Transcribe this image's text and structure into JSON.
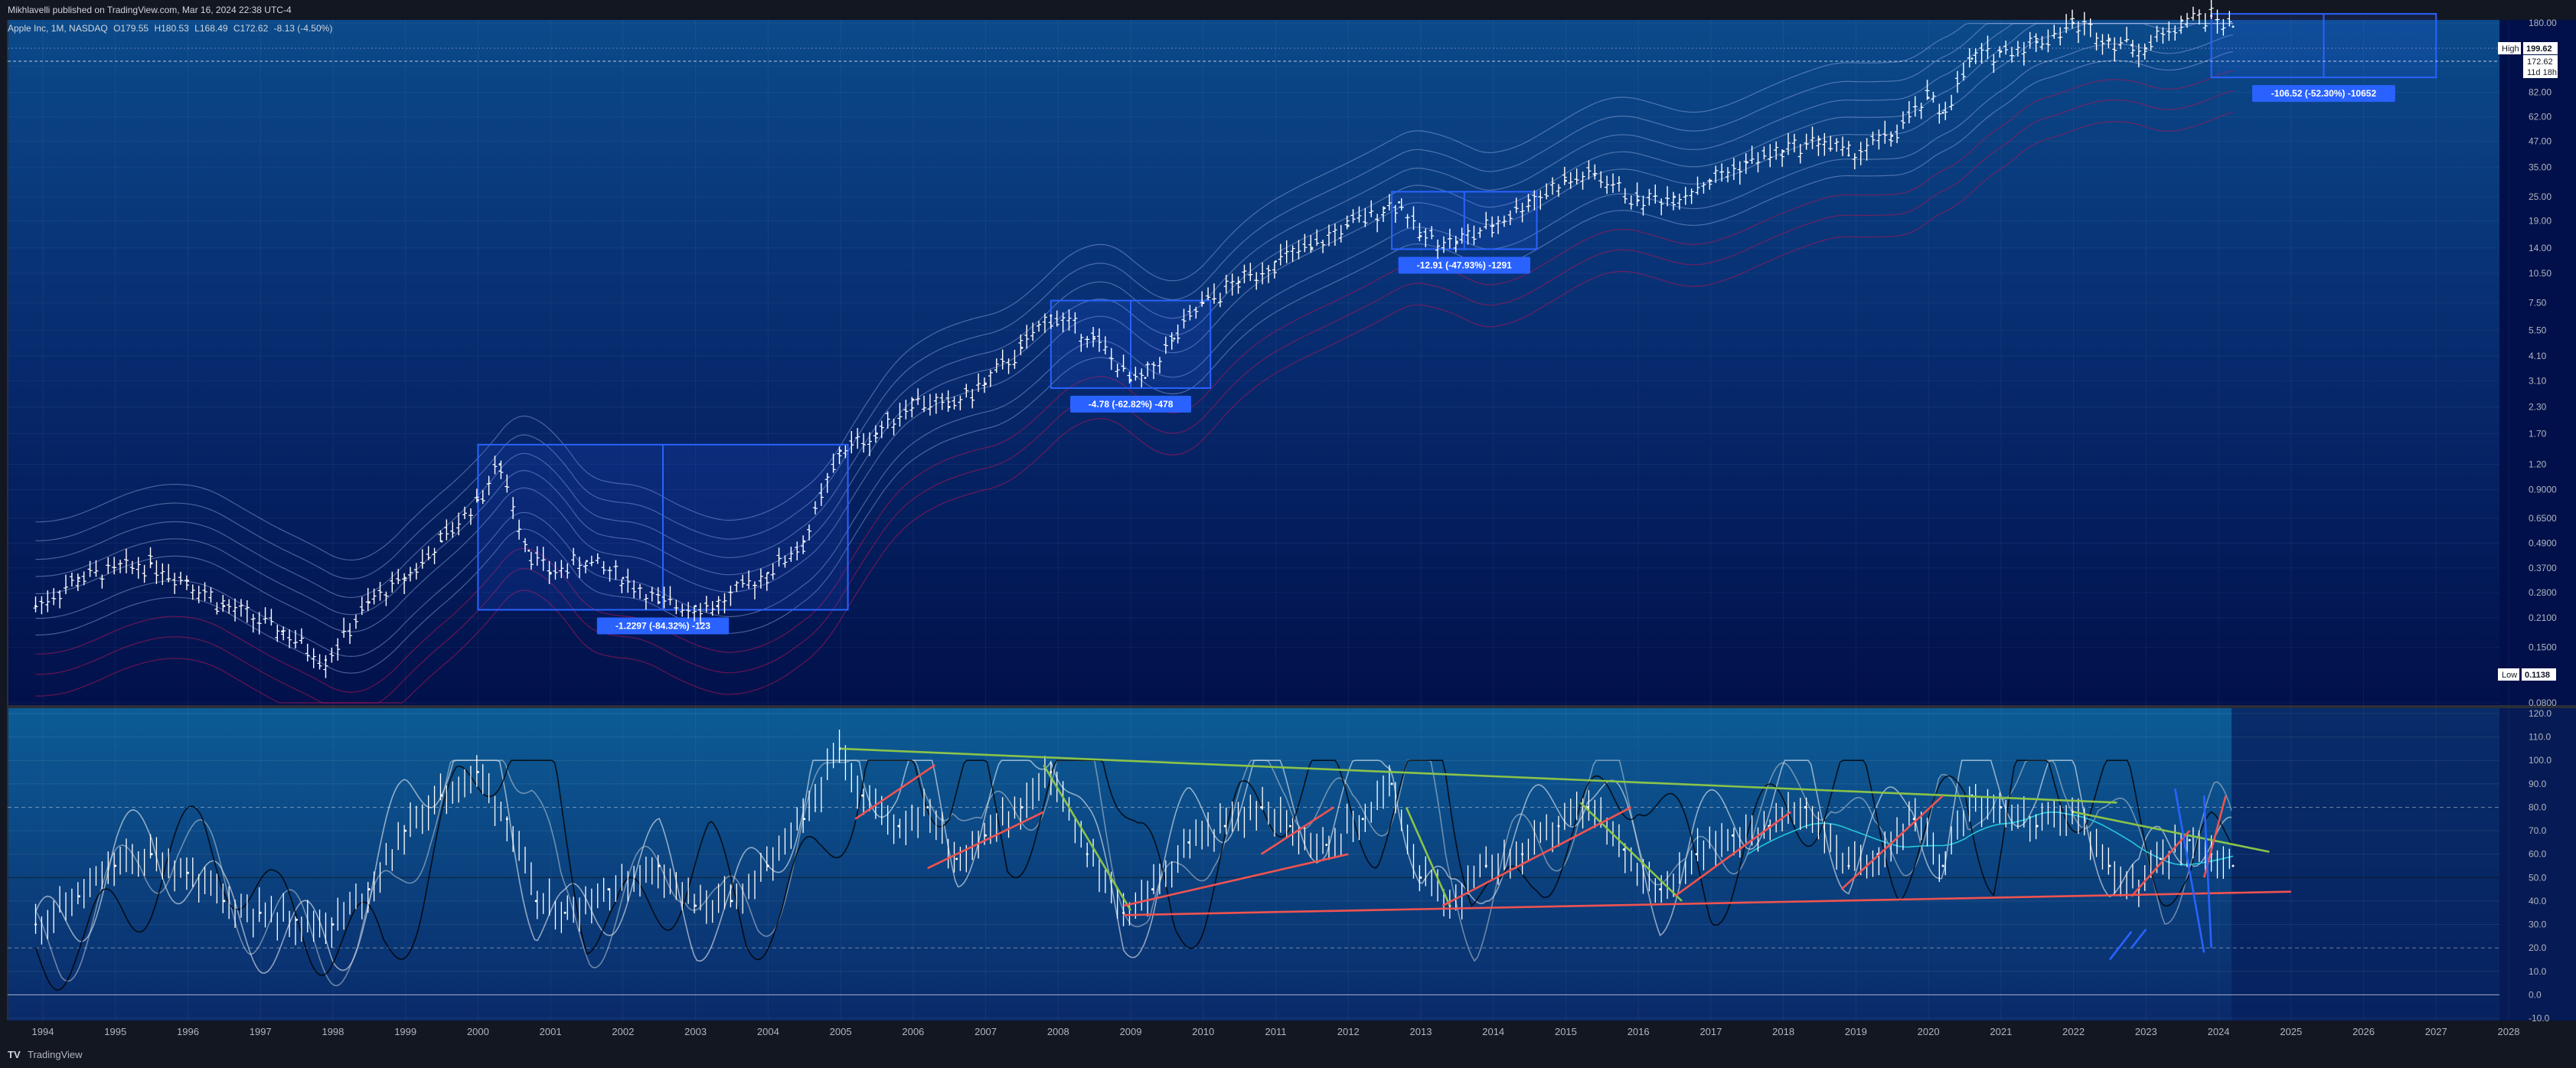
{
  "header": {
    "publisher_line": "Mikhlavelli published on TradingView.com, Mar 16, 2024 22:38 UTC-4"
  },
  "legend": {
    "symbol": "Apple Inc, 1M, NASDAQ",
    "open_label": "O",
    "open": "179.55",
    "high_label": "H",
    "high": "180.53",
    "low_label": "L",
    "low": "168.49",
    "close_label": "C",
    "close": "172.62",
    "change": "-8.13 (-4.50%)"
  },
  "price_badges": {
    "high_label": "High",
    "high_value": "199.62",
    "last_value": "172.62",
    "countdown": "11d 18h",
    "low_label": "Low",
    "low_value": "0.1138"
  },
  "footer": {
    "brand": "TradingView",
    "logo_text": "TV"
  },
  "colors": {
    "bg_top": "#0b3f7a",
    "bg_bottom": "#010f4c",
    "osc_bg": "#0a4d86",
    "price_bars": "#ffffff",
    "box_fill": "#2962ff",
    "box_border": "#2962ff",
    "support_line": "#f05350",
    "resistance_line": "#8bc34a",
    "band_dark": "#ad1457"
  },
  "chart_data": [
    {
      "type": "line",
      "panel": "price",
      "scale": "log",
      "price_axis_ticks": [
        "180.00",
        "110.00",
        "82.00",
        "62.00",
        "47.00",
        "35.00",
        "25.00",
        "19.00",
        "14.00",
        "10.50",
        "7.50",
        "5.50",
        "4.10",
        "3.10",
        "2.30",
        "1.70",
        "1.20",
        "0.9000",
        "0.6500",
        "0.4900",
        "0.3700",
        "0.2800",
        "0.2100",
        "0.1500",
        "0.0800"
      ],
      "year_ticks": [
        "1994",
        "1995",
        "1996",
        "1997",
        "1998",
        "1999",
        "2000",
        "2001",
        "2002",
        "2003",
        "2004",
        "2005",
        "2006",
        "2007",
        "2008",
        "2009",
        "2010",
        "2011",
        "2012",
        "2013",
        "2014",
        "2015",
        "2016",
        "2017",
        "2018",
        "2019",
        "2020",
        "2021",
        "2022",
        "2023",
        "2024",
        "2025",
        "2026",
        "2027",
        "2028"
      ],
      "series": [
        {
          "x": [
            1993.9,
            1994.5,
            1995.5,
            1996.0,
            1996.5,
            1997.3,
            1997.9,
            1998.5,
            1999.0,
            1999.5,
            2000.0,
            2000.3,
            2000.7,
            2001.0,
            2001.5,
            2002.0,
            2002.5,
            2003.0,
            2003.3,
            2004.0,
            2004.5,
            2005.0,
            2005.5,
            2006.0,
            2006.5,
            2007.0,
            2007.5,
            2007.9,
            2008.5,
            2009.0,
            2009.2,
            2009.6,
            2010.0,
            2010.5,
            2011.0,
            2011.5,
            2012.0,
            2012.5,
            2012.7,
            2013.0,
            2013.5,
            2014.0,
            2014.5,
            2015.0,
            2015.4,
            2016.0,
            2016.5,
            2017.0,
            2017.5,
            2018.0,
            2018.5,
            2018.9,
            2019.5,
            2020.0,
            2020.2,
            2020.6,
            2021.0,
            2021.5,
            2022.0,
            2022.5,
            2022.8,
            2023.0,
            2023.5,
            2023.9,
            2024.2
          ],
          "values": [
            0.24,
            0.33,
            0.39,
            0.32,
            0.24,
            0.18,
            0.13,
            0.25,
            0.33,
            0.5,
            0.8,
            1.2,
            0.45,
            0.35,
            0.4,
            0.33,
            0.25,
            0.24,
            0.24,
            0.35,
            0.5,
            1.4,
            1.7,
            2.5,
            2.3,
            3.0,
            4.5,
            6.5,
            5.0,
            3.1,
            3.2,
            5.0,
            7.5,
            9.5,
            12.0,
            14.0,
            18.0,
            22.0,
            23.5,
            16.0,
            15.0,
            18.0,
            24.0,
            30.0,
            32.0,
            24.0,
            25.0,
            30.0,
            37.0,
            42.0,
            48.0,
            40.0,
            50.0,
            77.0,
            65.0,
            120.0,
            130.0,
            145.0,
            180.0,
            150.0,
            140.0,
            135.0,
            185.0,
            195.0,
            172.62
          ]
        }
      ],
      "drawdown_boxes": [
        {
          "label": "-1.2297 (-84.32%) -123",
          "from_year": 2000.0,
          "to_year": 2005.1,
          "top": 1.5,
          "bottom": 0.23
        },
        {
          "label": "-4.78 (-62.82%) -478",
          "from_year": 2007.9,
          "to_year": 2010.1,
          "top": 7.7,
          "bottom": 2.85
        },
        {
          "label": "-12.91 (-47.93%) -1291",
          "from_year": 2012.6,
          "to_year": 2014.6,
          "top": 26.5,
          "bottom": 13.8
        },
        {
          "label": "-106.52 (-52.30%) -10652",
          "from_year": 2023.9,
          "to_year": 2027.0,
          "top": 199.62,
          "bottom": 97.0
        }
      ]
    },
    {
      "type": "line",
      "panel": "oscillator",
      "y_axis_ticks": [
        "120.0",
        "110.0",
        "100.0",
        "90.0",
        "80.0",
        "70.0",
        "60.0",
        "50.0",
        "40.0",
        "30.0",
        "20.0",
        "10.0",
        "0.0",
        "-10.0"
      ],
      "ylim": [
        -10,
        120
      ],
      "series": [
        {
          "x": [
            1993.9,
            1994.5,
            1995.0,
            1995.5,
            1996.0,
            1996.5,
            1997.0,
            1997.5,
            1998.0,
            1998.5,
            1999.0,
            1999.5,
            2000.0,
            2000.4,
            2000.8,
            2001.2,
            2001.8,
            2002.5,
            2003.0,
            2003.5,
            2004.0,
            2004.5,
            2005.0,
            2005.3,
            2005.8,
            2006.2,
            2006.6,
            2007.0,
            2007.5,
            2007.9,
            2008.4,
            2008.9,
            2009.3,
            2009.8,
            2010.3,
            2010.8,
            2011.2,
            2011.7,
            2012.2,
            2012.6,
            2013.0,
            2013.4,
            2013.9,
            2014.4,
            2014.9,
            2015.3,
            2015.8,
            2016.3,
            2016.8,
            2017.3,
            2017.8,
            2018.3,
            2018.9,
            2019.3,
            2019.8,
            2020.2,
            2020.6,
            2021.0,
            2021.5,
            2022.0,
            2022.5,
            2022.9,
            2023.2,
            2023.6,
            2023.9,
            2024.2
          ],
          "values": [
            30,
            42,
            55,
            60,
            52,
            40,
            35,
            32,
            30,
            45,
            70,
            85,
            95,
            75,
            40,
            35,
            45,
            55,
            38,
            40,
            55,
            75,
            105,
            85,
            72,
            80,
            58,
            68,
            80,
            95,
            60,
            35,
            45,
            65,
            72,
            80,
            72,
            64,
            75,
            90,
            50,
            38,
            55,
            60,
            72,
            80,
            62,
            45,
            60,
            68,
            72,
            80,
            55,
            60,
            75,
            55,
            85,
            80,
            72,
            78,
            55,
            45,
            58,
            66,
            60,
            55
          ]
        }
      ]
    }
  ]
}
